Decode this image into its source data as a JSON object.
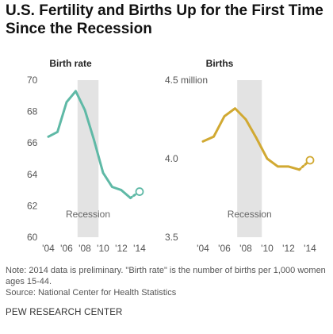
{
  "title": "U.S. Fertility and Births Up for the First Time Since the Recession",
  "colors": {
    "birth_rate": "#5fb9a6",
    "births": "#d1a932",
    "recession_band": "#e3e3e3"
  },
  "chart_data": [
    {
      "type": "line",
      "title": "Birth rate",
      "x": [
        2004,
        2005,
        2006,
        2007,
        2008,
        2009,
        2010,
        2011,
        2012,
        2013,
        2014
      ],
      "series": [
        {
          "values": [
            66.4,
            66.7,
            68.6,
            69.3,
            68.1,
            66.2,
            64.1,
            63.2,
            63.0,
            62.5,
            62.9
          ]
        }
      ],
      "preliminary_x": 2014,
      "ylim": [
        60,
        70
      ],
      "yticks": [
        "70",
        "68",
        "66",
        "64",
        "62",
        "60"
      ],
      "xticks": [
        "'04",
        "'06",
        "'08",
        "'10",
        "'12",
        "'14"
      ],
      "recession": {
        "label": "Recession",
        "x": [
          2007.2,
          2009.5
        ]
      }
    },
    {
      "type": "line",
      "title": "Births",
      "x": [
        2004,
        2005,
        2006,
        2007,
        2008,
        2009,
        2010,
        2011,
        2012,
        2013,
        2014
      ],
      "series": [
        {
          "values": [
            4.11,
            4.14,
            4.27,
            4.32,
            4.25,
            4.13,
            4.0,
            3.95,
            3.95,
            3.93,
            3.99
          ]
        }
      ],
      "preliminary_x": 2014,
      "ylim": [
        3.5,
        4.5
      ],
      "yticks": [
        "4.5 million",
        "4.0",
        "3.5"
      ],
      "xticks": [
        "'04",
        "'06",
        "'08",
        "'10",
        "'12",
        "'14"
      ],
      "recession": {
        "label": "Recession",
        "x": [
          2007.2,
          2009.5
        ]
      }
    }
  ],
  "notes": {
    "note": "Note: 2014 data is preliminary. \"Birth rate\" is the number of births per 1,000 women ages 15-44.",
    "source": "Source: National Center for Health Statistics"
  },
  "organization": "PEW RESEARCH CENTER"
}
